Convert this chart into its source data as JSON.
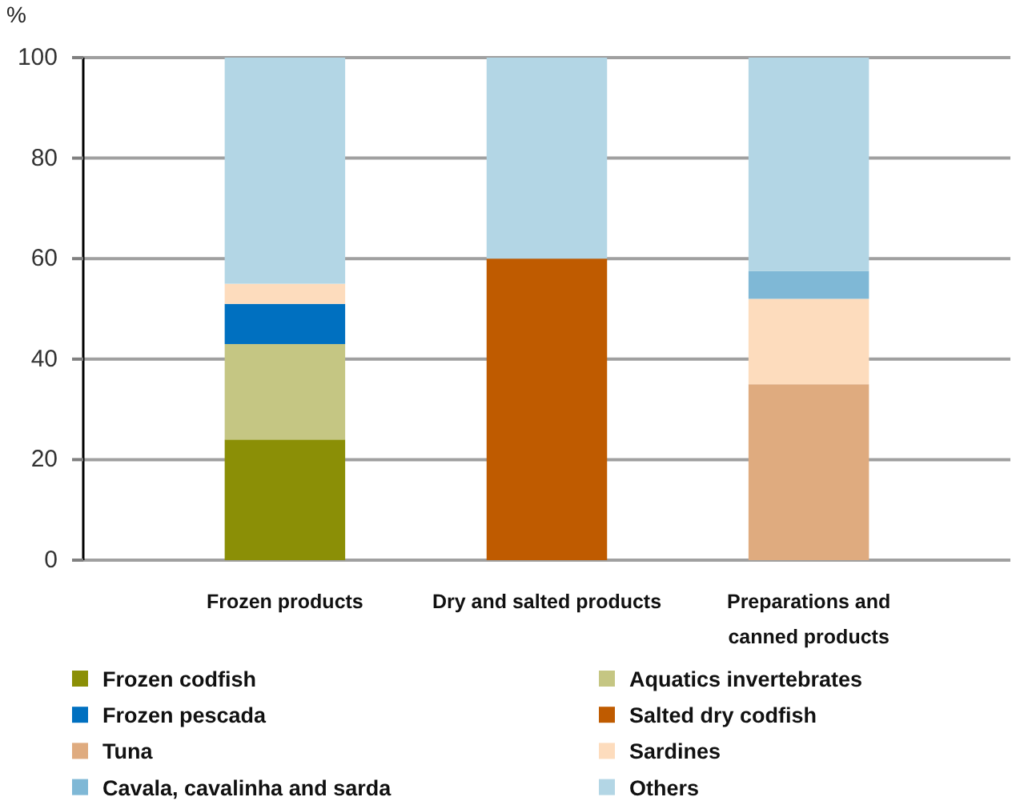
{
  "chart_data": {
    "type": "bar",
    "stacked": true,
    "ylabel": "%",
    "categories": [
      "Frozen products",
      "Dry and salted products",
      "Preparations and canned products"
    ],
    "series": [
      {
        "name": "Frozen codfish",
        "color": "#8b8f06",
        "values": [
          24,
          null,
          null
        ]
      },
      {
        "name": "Aquatics invertebrates",
        "color": "#c5c683",
        "values": [
          19,
          null,
          null
        ]
      },
      {
        "name": "Frozen pescada",
        "color": "#0070c0",
        "values": [
          8,
          null,
          null
        ]
      },
      {
        "name": "Salted dry codfish",
        "color": "#bf5b00",
        "values": [
          null,
          60,
          null
        ]
      },
      {
        "name": "Tuna",
        "color": "#dfab7f",
        "values": [
          null,
          null,
          35
        ]
      },
      {
        "name": "Sardines",
        "color": "#fddcbd",
        "values": [
          4,
          null,
          17
        ]
      },
      {
        "name": "Cavala, cavalinha and sarda",
        "color": "#7fb8d6",
        "values": [
          null,
          null,
          5.5
        ]
      },
      {
        "name": "Others",
        "color": "#b3d6e5",
        "values": [
          45,
          40,
          42.5
        ]
      }
    ],
    "ylim": [
      0,
      100
    ],
    "yticks": [
      0,
      20,
      40,
      60,
      80,
      100
    ],
    "grid": "y",
    "legend": "bottom"
  }
}
